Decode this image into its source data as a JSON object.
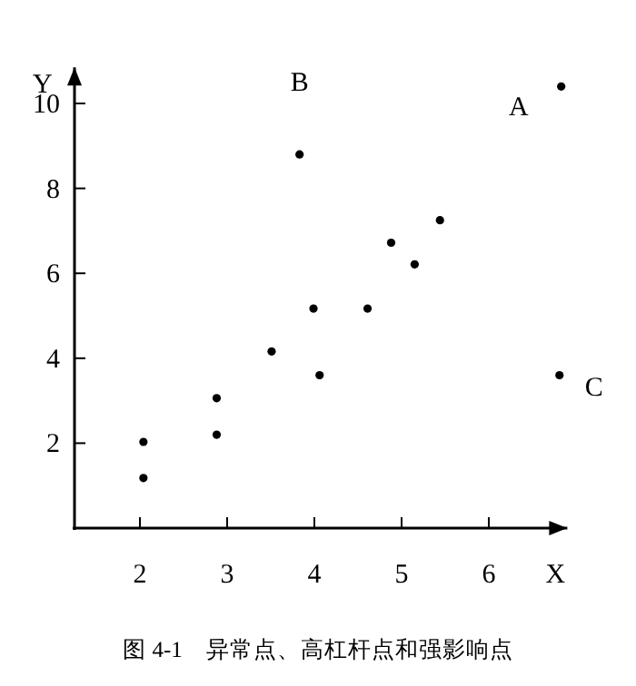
{
  "chart_data": {
    "type": "scatter",
    "xlabel": "X",
    "ylabel": "Y",
    "x": [
      6.83,
      3.83,
      5.44,
      4.88,
      5.15,
      3.99,
      4.61,
      3.51,
      4.06,
      6.81,
      2.88,
      2.88,
      2.04,
      2.04
    ],
    "values": [
      10.4,
      8.8,
      7.25,
      6.72,
      6.21,
      5.17,
      5.17,
      4.16,
      3.6,
      3.6,
      3.06,
      2.2,
      2.03,
      1.18
    ],
    "color": "#000000",
    "marker": "circle",
    "xlim": [
      1.25,
      6.9
    ],
    "ylim": [
      0,
      10.85
    ],
    "xticks": [
      2,
      3,
      4,
      5,
      6
    ],
    "yticks": [
      2,
      4,
      6,
      8,
      10
    ],
    "grid": false,
    "annotations": [
      {
        "text": "A",
        "x": 6.83,
        "y": 10.4
      },
      {
        "text": "B",
        "x": 3.83,
        "y": 8.8
      },
      {
        "text": "C",
        "x": 6.81,
        "y": 3.6
      },
      "图 4-1　异常点、高杠杆点和强影响点"
    ]
  }
}
